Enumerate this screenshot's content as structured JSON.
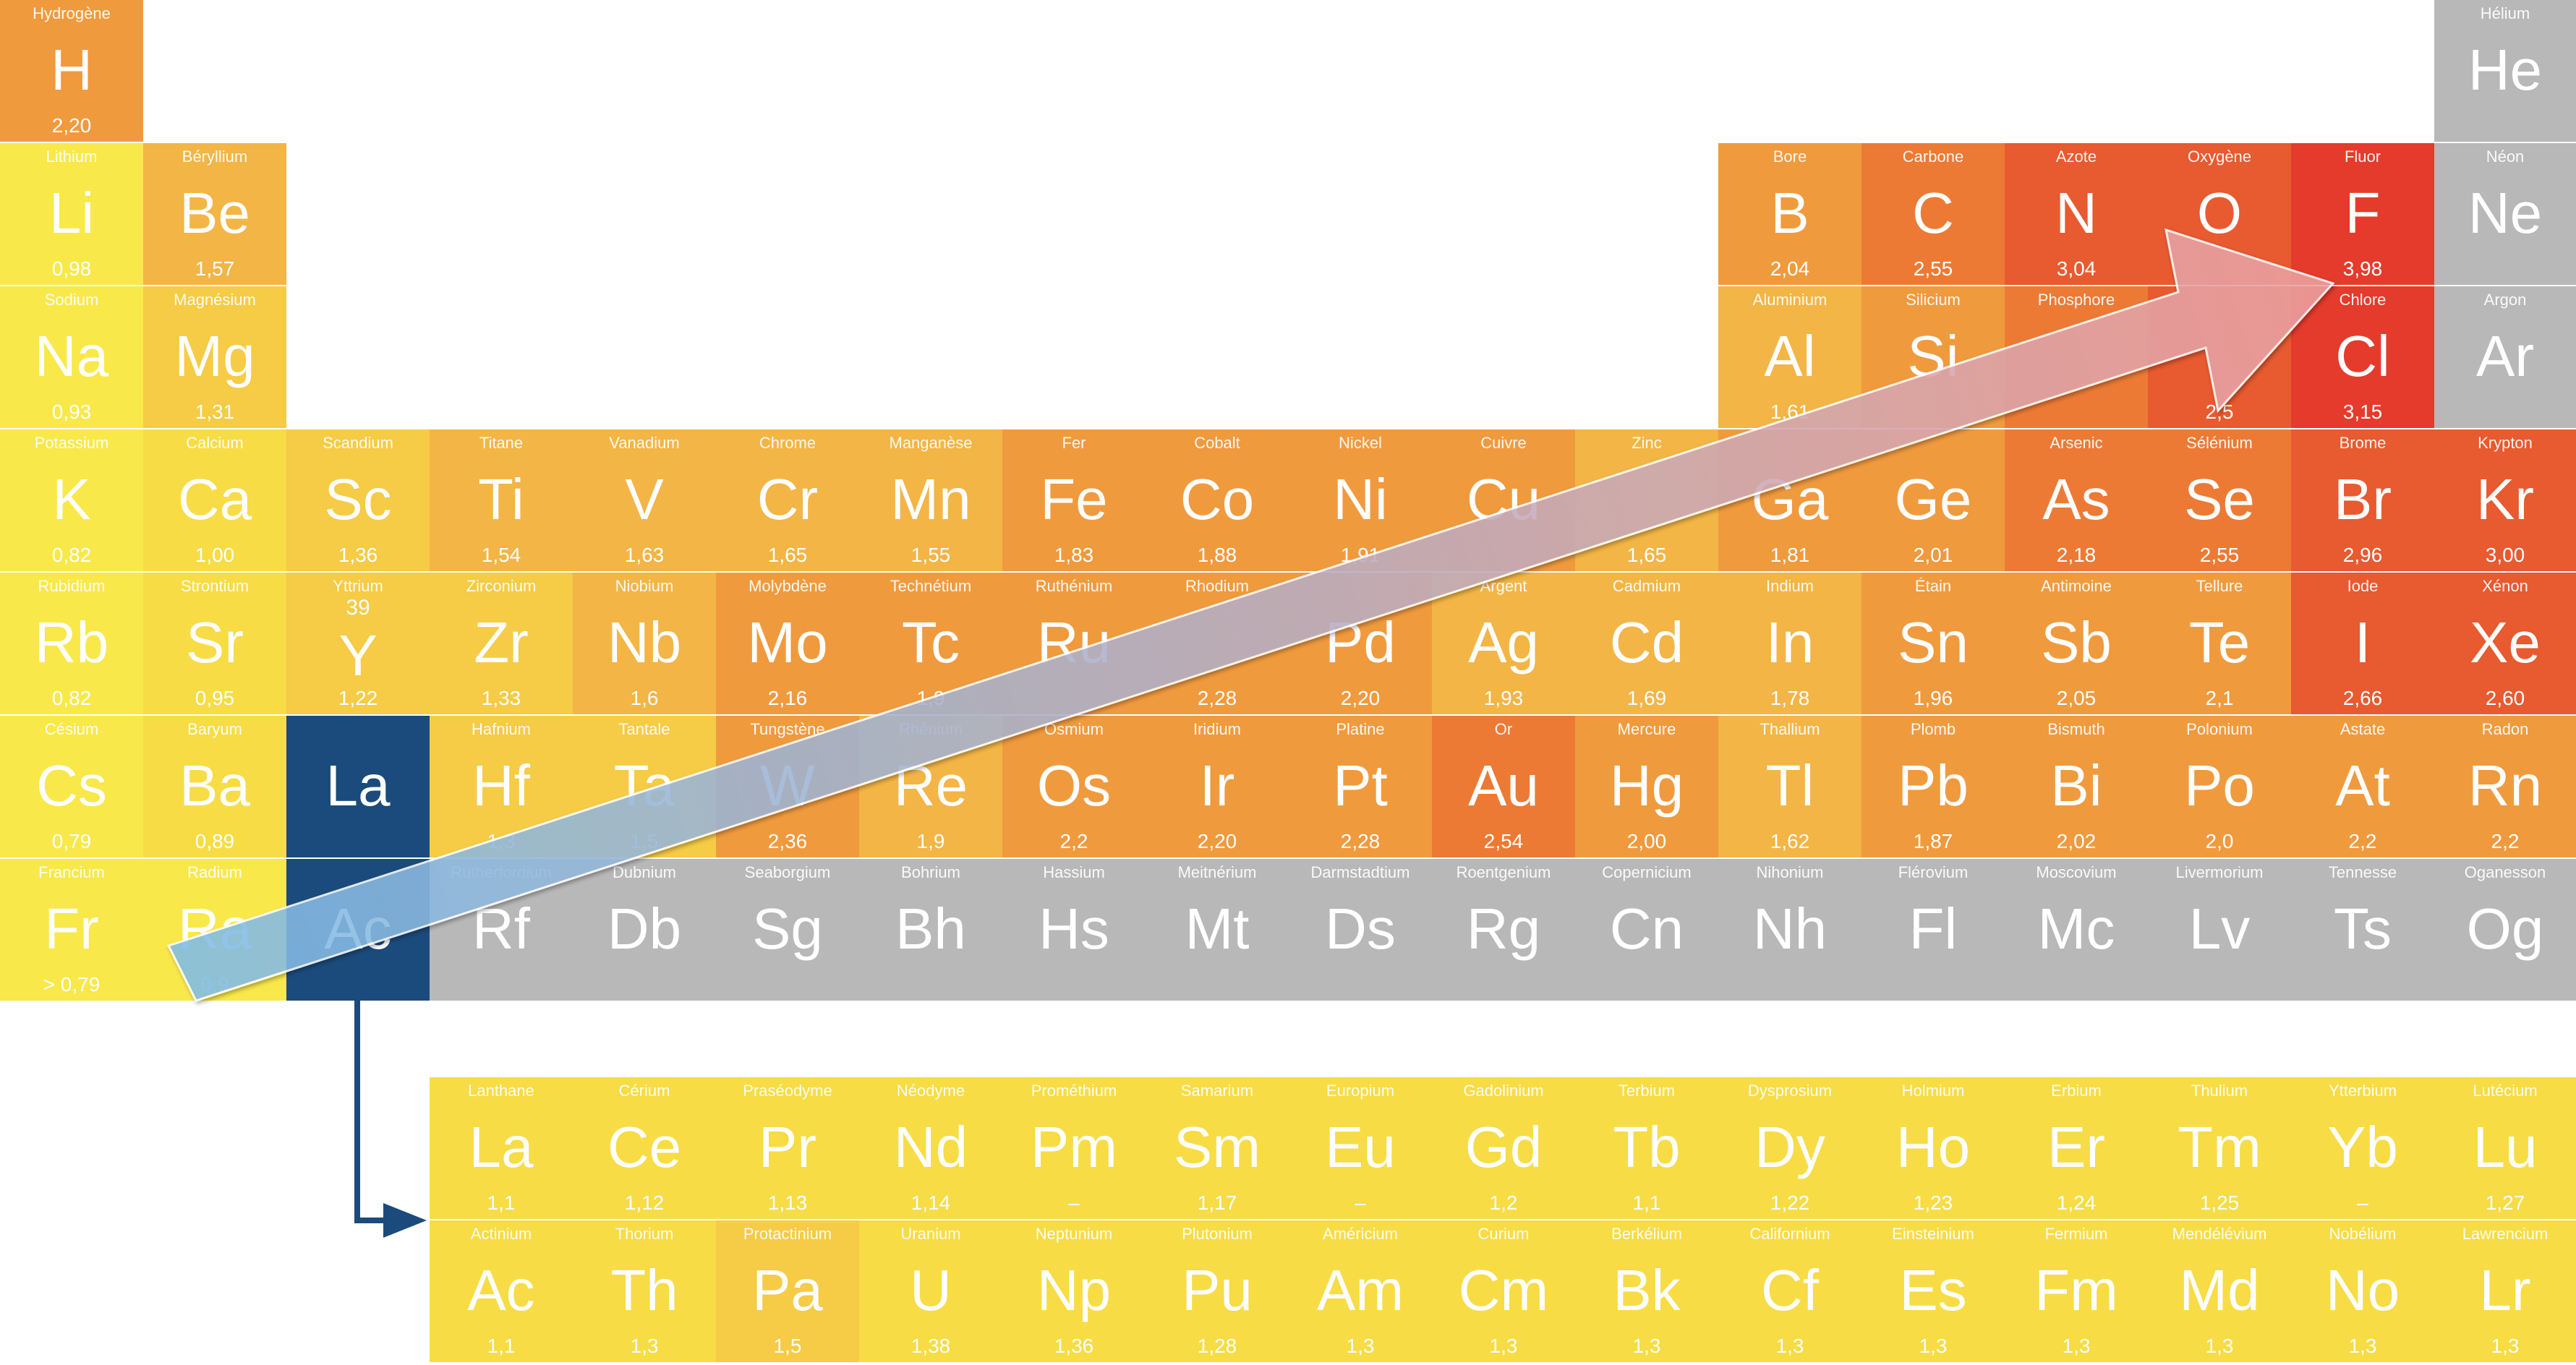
{
  "colors": {
    "y1": "#f9e84a",
    "y2": "#f7dc45",
    "y3": "#f6cb45",
    "o1": "#f3b545",
    "o2": "#f09a3e",
    "o3": "#ec7a35",
    "r1": "#e85a30",
    "r2": "#e53b2c",
    "gray": "#b8b8b8",
    "navy": "#1b4b7c"
  },
  "elements": [
    {
      "id": "h",
      "row": 0,
      "col": 0,
      "name": "Hydrogène",
      "symbol": "H",
      "value": "2,20",
      "color": "o2"
    },
    {
      "id": "he",
      "row": 0,
      "col": 17,
      "name": "Hélium",
      "symbol": "He",
      "value": "",
      "color": "gray"
    },
    {
      "id": "li",
      "row": 1,
      "col": 0,
      "name": "Lithium",
      "symbol": "Li",
      "value": "0,98",
      "color": "y1"
    },
    {
      "id": "be",
      "row": 1,
      "col": 1,
      "name": "Béryllium",
      "symbol": "Be",
      "value": "1,57",
      "color": "o1"
    },
    {
      "id": "b",
      "row": 1,
      "col": 12,
      "name": "Bore",
      "symbol": "B",
      "value": "2,04",
      "color": "o2"
    },
    {
      "id": "c",
      "row": 1,
      "col": 13,
      "name": "Carbone",
      "symbol": "C",
      "value": "2,55",
      "color": "o3"
    },
    {
      "id": "n",
      "row": 1,
      "col": 14,
      "name": "Azote",
      "symbol": "N",
      "value": "3,04",
      "color": "r1"
    },
    {
      "id": "o",
      "row": 1,
      "col": 15,
      "name": "Oxygène",
      "symbol": "O",
      "value": "",
      "color": "r1"
    },
    {
      "id": "f",
      "row": 1,
      "col": 16,
      "name": "Fluor",
      "symbol": "F",
      "value": "3,98",
      "color": "r2"
    },
    {
      "id": "ne",
      "row": 1,
      "col": 17,
      "name": "Néon",
      "symbol": "Ne",
      "value": "",
      "color": "gray"
    },
    {
      "id": "na",
      "row": 2,
      "col": 0,
      "name": "Sodium",
      "symbol": "Na",
      "value": "0,93",
      "color": "y1"
    },
    {
      "id": "mg",
      "row": 2,
      "col": 1,
      "name": "Magnésium",
      "symbol": "Mg",
      "value": "1,31",
      "color": "y3"
    },
    {
      "id": "al",
      "row": 2,
      "col": 12,
      "name": "Aluminium",
      "symbol": "Al",
      "value": "1,61",
      "color": "o1"
    },
    {
      "id": "si",
      "row": 2,
      "col": 13,
      "name": "Silicium",
      "symbol": "Si",
      "value": "",
      "color": "o2"
    },
    {
      "id": "p",
      "row": 2,
      "col": 14,
      "name": "Phosphore",
      "symbol": "",
      "value": "",
      "color": "o3"
    },
    {
      "id": "s",
      "row": 2,
      "col": 15,
      "name": "",
      "symbol": "",
      "value": "2,5",
      "color": "r1"
    },
    {
      "id": "cl",
      "row": 2,
      "col": 16,
      "name": "Chlore",
      "symbol": "Cl",
      "value": "3,15",
      "color": "r2"
    },
    {
      "id": "ar",
      "row": 2,
      "col": 17,
      "name": "Argon",
      "symbol": "Ar",
      "value": "",
      "color": "gray"
    },
    {
      "id": "k",
      "row": 3,
      "col": 0,
      "name": "Potassium",
      "symbol": "K",
      "value": "0,82",
      "color": "y1"
    },
    {
      "id": "ca",
      "row": 3,
      "col": 1,
      "name": "Calcium",
      "symbol": "Ca",
      "value": "1,00",
      "color": "y2"
    },
    {
      "id": "sc",
      "row": 3,
      "col": 2,
      "name": "Scandium",
      "symbol": "Sc",
      "value": "1,36",
      "color": "y3"
    },
    {
      "id": "ti",
      "row": 3,
      "col": 3,
      "name": "Titane",
      "symbol": "Ti",
      "value": "1,54",
      "color": "o1"
    },
    {
      "id": "v",
      "row": 3,
      "col": 4,
      "name": "Vanadium",
      "symbol": "V",
      "value": "1,63",
      "color": "o1"
    },
    {
      "id": "cr",
      "row": 3,
      "col": 5,
      "name": "Chrome",
      "symbol": "Cr",
      "value": "1,65",
      "color": "o1"
    },
    {
      "id": "mn",
      "row": 3,
      "col": 6,
      "name": "Manganèse",
      "symbol": "Mn",
      "value": "1,55",
      "color": "o1"
    },
    {
      "id": "fe",
      "row": 3,
      "col": 7,
      "name": "Fer",
      "symbol": "Fe",
      "value": "1,83",
      "color": "o2"
    },
    {
      "id": "co",
      "row": 3,
      "col": 8,
      "name": "Cobalt",
      "symbol": "Co",
      "value": "1,88",
      "color": "o2"
    },
    {
      "id": "ni",
      "row": 3,
      "col": 9,
      "name": "Nickel",
      "symbol": "Ni",
      "value": "1,91",
      "color": "o2"
    },
    {
      "id": "cu",
      "row": 3,
      "col": 10,
      "name": "Cuivre",
      "symbol": "Cu",
      "value": "",
      "color": "o2"
    },
    {
      "id": "zn",
      "row": 3,
      "col": 11,
      "name": "Zinc",
      "symbol": "",
      "value": "1,65",
      "color": "o1"
    },
    {
      "id": "ga",
      "row": 3,
      "col": 12,
      "name": "",
      "symbol": "Ga",
      "value": "1,81",
      "color": "o2"
    },
    {
      "id": "ge",
      "row": 3,
      "col": 13,
      "name": "",
      "symbol": "Ge",
      "value": "2,01",
      "color": "o2"
    },
    {
      "id": "as",
      "row": 3,
      "col": 14,
      "name": "Arsenic",
      "symbol": "As",
      "value": "2,18",
      "color": "o3"
    },
    {
      "id": "se",
      "row": 3,
      "col": 15,
      "name": "Sélénium",
      "symbol": "Se",
      "value": "2,55",
      "color": "o3"
    },
    {
      "id": "br",
      "row": 3,
      "col": 16,
      "name": "Brome",
      "symbol": "Br",
      "value": "2,96",
      "color": "r1"
    },
    {
      "id": "kr",
      "row": 3,
      "col": 17,
      "name": "Krypton",
      "symbol": "Kr",
      "value": "3,00",
      "color": "r1"
    },
    {
      "id": "rb",
      "row": 4,
      "col": 0,
      "name": "Rubidium",
      "symbol": "Rb",
      "value": "0,82",
      "color": "y1"
    },
    {
      "id": "sr",
      "row": 4,
      "col": 1,
      "name": "Strontium",
      "symbol": "Sr",
      "value": "0,95",
      "color": "y2"
    },
    {
      "id": "y",
      "row": 4,
      "col": 2,
      "name": "Yttrium",
      "symbol": "Y",
      "number": "39",
      "value": "1,22",
      "color": "y3"
    },
    {
      "id": "zr",
      "row": 4,
      "col": 3,
      "name": "Zirconium",
      "symbol": "Zr",
      "value": "1,33",
      "color": "y3"
    },
    {
      "id": "nb",
      "row": 4,
      "col": 4,
      "name": "Niobium",
      "symbol": "Nb",
      "value": "1,6",
      "color": "o1"
    },
    {
      "id": "mo",
      "row": 4,
      "col": 5,
      "name": "Molybdène",
      "symbol": "Mo",
      "value": "2,16",
      "color": "o2"
    },
    {
      "id": "tc",
      "row": 4,
      "col": 6,
      "name": "Technétium",
      "symbol": "Tc",
      "value": "1,9",
      "color": "o2"
    },
    {
      "id": "ru",
      "row": 4,
      "col": 7,
      "name": "Ruthénium",
      "symbol": "Ru",
      "value": "",
      "color": "o2"
    },
    {
      "id": "rh",
      "row": 4,
      "col": 8,
      "name": "Rhodium",
      "symbol": "",
      "value": "2,28",
      "color": "o2"
    },
    {
      "id": "pd",
      "row": 4,
      "col": 9,
      "name": "",
      "symbol": "Pd",
      "value": "2,20",
      "color": "o2"
    },
    {
      "id": "ag",
      "row": 4,
      "col": 10,
      "name": "Argent",
      "symbol": "Ag",
      "value": "1,93",
      "color": "o1"
    },
    {
      "id": "cd",
      "row": 4,
      "col": 11,
      "name": "Cadmium",
      "symbol": "Cd",
      "value": "1,69",
      "color": "o1"
    },
    {
      "id": "in",
      "row": 4,
      "col": 12,
      "name": "Indium",
      "symbol": "In",
      "value": "1,78",
      "color": "o1"
    },
    {
      "id": "sn",
      "row": 4,
      "col": 13,
      "name": "Étain",
      "symbol": "Sn",
      "value": "1,96",
      "color": "o2"
    },
    {
      "id": "sb",
      "row": 4,
      "col": 14,
      "name": "Antimoine",
      "symbol": "Sb",
      "value": "2,05",
      "color": "o2"
    },
    {
      "id": "te",
      "row": 4,
      "col": 15,
      "name": "Tellure",
      "symbol": "Te",
      "value": "2,1",
      "color": "o2"
    },
    {
      "id": "i",
      "row": 4,
      "col": 16,
      "name": "Iode",
      "symbol": "I",
      "value": "2,66",
      "color": "r1"
    },
    {
      "id": "xe",
      "row": 4,
      "col": 17,
      "name": "Xénon",
      "symbol": "Xe",
      "value": "2,60",
      "color": "r1"
    },
    {
      "id": "cs",
      "row": 5,
      "col": 0,
      "name": "Césium",
      "symbol": "Cs",
      "value": "0,79",
      "color": "y1"
    },
    {
      "id": "ba",
      "row": 5,
      "col": 1,
      "name": "Baryum",
      "symbol": "Ba",
      "value": "0,89",
      "color": "y2"
    },
    {
      "id": "la-main",
      "row": 5,
      "col": 2,
      "name": "",
      "symbol": "La",
      "value": "",
      "color": "navy"
    },
    {
      "id": "hf",
      "row": 5,
      "col": 3,
      "name": "Hafnium",
      "symbol": "Hf",
      "value": "1,3",
      "color": "y3"
    },
    {
      "id": "ta",
      "row": 5,
      "col": 4,
      "name": "Tantale",
      "symbol": "Ta",
      "value": "1,5",
      "color": "y3"
    },
    {
      "id": "w",
      "row": 5,
      "col": 5,
      "name": "Tungstène",
      "symbol": "W",
      "value": "2,36",
      "color": "o2"
    },
    {
      "id": "re",
      "row": 5,
      "col": 6,
      "name": "Rhénium",
      "symbol": "Re",
      "value": "1,9",
      "color": "o1"
    },
    {
      "id": "os",
      "row": 5,
      "col": 7,
      "name": "Osmium",
      "symbol": "Os",
      "value": "2,2",
      "color": "o2"
    },
    {
      "id": "ir",
      "row": 5,
      "col": 8,
      "name": "Iridium",
      "symbol": "Ir",
      "value": "2,20",
      "color": "o2"
    },
    {
      "id": "pt",
      "row": 5,
      "col": 9,
      "name": "Platine",
      "symbol": "Pt",
      "value": "2,28",
      "color": "o2"
    },
    {
      "id": "au",
      "row": 5,
      "col": 10,
      "name": "Or",
      "symbol": "Au",
      "value": "2,54",
      "color": "o3"
    },
    {
      "id": "hg",
      "row": 5,
      "col": 11,
      "name": "Mercure",
      "symbol": "Hg",
      "value": "2,00",
      "color": "o2"
    },
    {
      "id": "tl",
      "row": 5,
      "col": 12,
      "name": "Thallium",
      "symbol": "Tl",
      "value": "1,62",
      "color": "o1"
    },
    {
      "id": "pb",
      "row": 5,
      "col": 13,
      "name": "Plomb",
      "symbol": "Pb",
      "value": "1,87",
      "color": "o2"
    },
    {
      "id": "bi",
      "row": 5,
      "col": 14,
      "name": "Bismuth",
      "symbol": "Bi",
      "value": "2,02",
      "color": "o2"
    },
    {
      "id": "po",
      "row": 5,
      "col": 15,
      "name": "Polonium",
      "symbol": "Po",
      "value": "2,0",
      "color": "o2"
    },
    {
      "id": "at",
      "row": 5,
      "col": 16,
      "name": "Astate",
      "symbol": "At",
      "value": "2,2",
      "color": "o2"
    },
    {
      "id": "rn",
      "row": 5,
      "col": 17,
      "name": "Radon",
      "symbol": "Rn",
      "value": "2,2",
      "color": "o2"
    },
    {
      "id": "fr",
      "row": 6,
      "col": 0,
      "name": "Francium",
      "symbol": "Fr",
      "value": "> 0,79",
      "color": "y1"
    },
    {
      "id": "ra",
      "row": 6,
      "col": 1,
      "name": "Radium",
      "symbol": "Ra",
      "value": "0,9",
      "color": "y1"
    },
    {
      "id": "ac-main",
      "row": 6,
      "col": 2,
      "name": "",
      "symbol": "Ac",
      "value": "",
      "color": "navy"
    },
    {
      "id": "rf",
      "row": 6,
      "col": 3,
      "name": "Rutherfordium",
      "symbol": "Rf",
      "value": "",
      "color": "gray"
    },
    {
      "id": "db",
      "row": 6,
      "col": 4,
      "name": "Dubnium",
      "symbol": "Db",
      "value": "",
      "color": "gray"
    },
    {
      "id": "sg",
      "row": 6,
      "col": 5,
      "name": "Seaborgium",
      "symbol": "Sg",
      "value": "",
      "color": "gray"
    },
    {
      "id": "bh",
      "row": 6,
      "col": 6,
      "name": "Bohrium",
      "symbol": "Bh",
      "value": "",
      "color": "gray"
    },
    {
      "id": "hs",
      "row": 6,
      "col": 7,
      "name": "Hassium",
      "symbol": "Hs",
      "value": "",
      "color": "gray"
    },
    {
      "id": "mt",
      "row": 6,
      "col": 8,
      "name": "Meitnérium",
      "symbol": "Mt",
      "value": "",
      "color": "gray"
    },
    {
      "id": "ds",
      "row": 6,
      "col": 9,
      "name": "Darmstadtium",
      "symbol": "Ds",
      "value": "",
      "color": "gray"
    },
    {
      "id": "rg",
      "row": 6,
      "col": 10,
      "name": "Roentgenium",
      "symbol": "Rg",
      "value": "",
      "color": "gray"
    },
    {
      "id": "cn",
      "row": 6,
      "col": 11,
      "name": "Copernicium",
      "symbol": "Cn",
      "value": "",
      "color": "gray"
    },
    {
      "id": "nh",
      "row": 6,
      "col": 12,
      "name": "Nihonium",
      "symbol": "Nh",
      "value": "",
      "color": "gray"
    },
    {
      "id": "fl",
      "row": 6,
      "col": 13,
      "name": "Flérovium",
      "symbol": "Fl",
      "value": "",
      "color": "gray"
    },
    {
      "id": "mc",
      "row": 6,
      "col": 14,
      "name": "Moscovium",
      "symbol": "Mc",
      "value": "",
      "color": "gray"
    },
    {
      "id": "lv",
      "row": 6,
      "col": 15,
      "name": "Livermorium",
      "symbol": "Lv",
      "value": "",
      "color": "gray"
    },
    {
      "id": "ts",
      "row": 6,
      "col": 16,
      "name": "Tennesse",
      "symbol": "Ts",
      "value": "",
      "color": "gray"
    },
    {
      "id": "og",
      "row": 6,
      "col": 17,
      "name": "Oganesson",
      "symbol": "Og",
      "value": "",
      "color": "gray"
    },
    {
      "id": "la",
      "row": 7,
      "col": 3,
      "name": "Lanthane",
      "symbol": "La",
      "value": "1,1",
      "color": "y2"
    },
    {
      "id": "ce",
      "row": 7,
      "col": 4,
      "name": "Cérium",
      "symbol": "Ce",
      "value": "1,12",
      "color": "y2"
    },
    {
      "id": "pr",
      "row": 7,
      "col": 5,
      "name": "Praséodyme",
      "symbol": "Pr",
      "value": "1,13",
      "color": "y2"
    },
    {
      "id": "nd",
      "row": 7,
      "col": 6,
      "name": "Néodyme",
      "symbol": "Nd",
      "value": "1,14",
      "color": "y2"
    },
    {
      "id": "pm",
      "row": 7,
      "col": 7,
      "name": "Prométhium",
      "symbol": "Pm",
      "value": "–",
      "color": "y2"
    },
    {
      "id": "sm",
      "row": 7,
      "col": 8,
      "name": "Samarium",
      "symbol": "Sm",
      "value": "1,17",
      "color": "y2"
    },
    {
      "id": "eu",
      "row": 7,
      "col": 9,
      "name": "Europium",
      "symbol": "Eu",
      "value": "–",
      "color": "y2"
    },
    {
      "id": "gd",
      "row": 7,
      "col": 10,
      "name": "Gadolinium",
      "symbol": "Gd",
      "value": "1,2",
      "color": "y2"
    },
    {
      "id": "tb",
      "row": 7,
      "col": 11,
      "name": "Terbium",
      "symbol": "Tb",
      "value": "1,1",
      "color": "y2"
    },
    {
      "id": "dy",
      "row": 7,
      "col": 12,
      "name": "Dysprosium",
      "symbol": "Dy",
      "value": "1,22",
      "color": "y2"
    },
    {
      "id": "ho",
      "row": 7,
      "col": 13,
      "name": "Holmium",
      "symbol": "Ho",
      "value": "1,23",
      "color": "y2"
    },
    {
      "id": "er",
      "row": 7,
      "col": 14,
      "name": "Erbium",
      "symbol": "Er",
      "value": "1,24",
      "color": "y2"
    },
    {
      "id": "tm",
      "row": 7,
      "col": 15,
      "name": "Thulium",
      "symbol": "Tm",
      "value": "1,25",
      "color": "y2"
    },
    {
      "id": "yb",
      "row": 7,
      "col": 16,
      "name": "Ytterbium",
      "symbol": "Yb",
      "value": "–",
      "color": "y2"
    },
    {
      "id": "lu",
      "row": 7,
      "col": 17,
      "name": "Lutécium",
      "symbol": "Lu",
      "value": "1,27",
      "color": "y2"
    },
    {
      "id": "ac",
      "row": 8,
      "col": 3,
      "name": "Actinium",
      "symbol": "Ac",
      "value": "1,1",
      "color": "y2"
    },
    {
      "id": "th",
      "row": 8,
      "col": 4,
      "name": "Thorium",
      "symbol": "Th",
      "value": "1,3",
      "color": "y2"
    },
    {
      "id": "pa",
      "row": 8,
      "col": 5,
      "name": "Protactinium",
      "symbol": "Pa",
      "value": "1,5",
      "color": "y3"
    },
    {
      "id": "u",
      "row": 8,
      "col": 6,
      "name": "Uranium",
      "symbol": "U",
      "value": "1,38",
      "color": "y2"
    },
    {
      "id": "np",
      "row": 8,
      "col": 7,
      "name": "Neptunium",
      "symbol": "Np",
      "value": "1,36",
      "color": "y2"
    },
    {
      "id": "pu",
      "row": 8,
      "col": 8,
      "name": "Plutonium",
      "symbol": "Pu",
      "value": "1,28",
      "color": "y2"
    },
    {
      "id": "am",
      "row": 8,
      "col": 9,
      "name": "Américium",
      "symbol": "Am",
      "value": "1,3",
      "color": "y2"
    },
    {
      "id": "cm",
      "row": 8,
      "col": 10,
      "name": "Curium",
      "symbol": "Cm",
      "value": "1,3",
      "color": "y2"
    },
    {
      "id": "bk",
      "row": 8,
      "col": 11,
      "name": "Berkélium",
      "symbol": "Bk",
      "value": "1,3",
      "color": "y2"
    },
    {
      "id": "cf",
      "row": 8,
      "col": 12,
      "name": "Californium",
      "symbol": "Cf",
      "value": "1,3",
      "color": "y2"
    },
    {
      "id": "es",
      "row": 8,
      "col": 13,
      "name": "Einsteinium",
      "symbol": "Es",
      "value": "1,3",
      "color": "y2"
    },
    {
      "id": "fm",
      "row": 8,
      "col": 14,
      "name": "Fermium",
      "symbol": "Fm",
      "value": "1,3",
      "color": "y2"
    },
    {
      "id": "md",
      "row": 8,
      "col": 15,
      "name": "Mendélévium",
      "symbol": "Md",
      "value": "1,3",
      "color": "y2"
    },
    {
      "id": "no",
      "row": 8,
      "col": 16,
      "name": "Nobélium",
      "symbol": "No",
      "value": "1,3",
      "color": "y2"
    },
    {
      "id": "lr",
      "row": 8,
      "col": 17,
      "name": "Lawrencium",
      "symbol": "Lr",
      "value": "1,3",
      "color": "y2"
    }
  ]
}
